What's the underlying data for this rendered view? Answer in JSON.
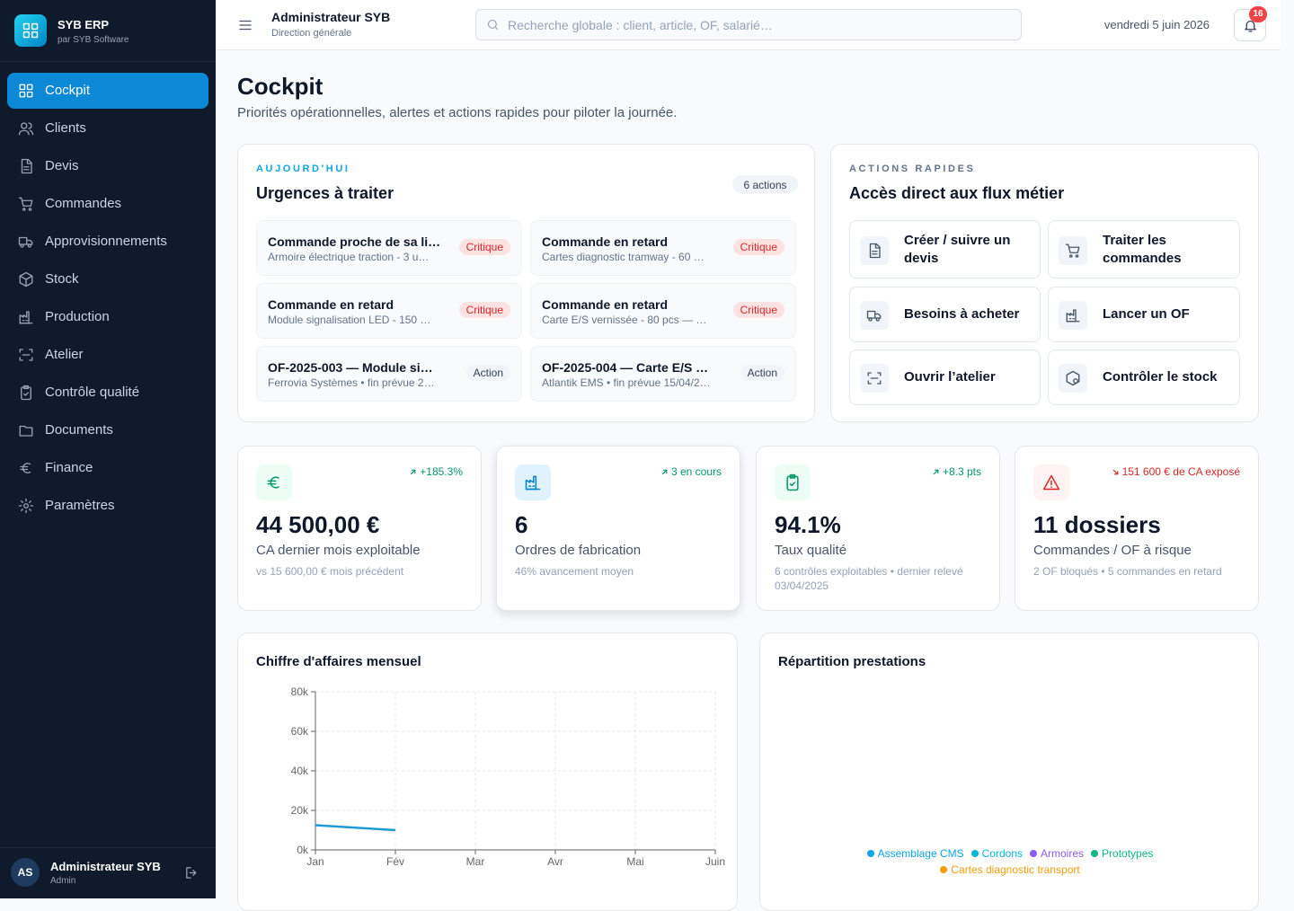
{
  "sidebar": {
    "brand": "SYB ERP",
    "brand_sub": "par SYB Software",
    "nav": [
      "Cockpit",
      "Clients",
      "Devis",
      "Commandes",
      "Approvisionnements",
      "Stock",
      "Production",
      "Atelier",
      "Contrôle qualité",
      "Documents",
      "Finance",
      "Paramètres"
    ],
    "user": {
      "initials": "AS",
      "name": "Administrateur SYB",
      "role": "Admin"
    }
  },
  "header": {
    "user": "Administrateur SYB",
    "role": "Direction générale",
    "search_placeholder": "Recherche globale : client, article, OF, salarié…",
    "date": "vendredi 5 juin 2026",
    "notifications": 16
  },
  "page": {
    "title": "Cockpit",
    "subtitle": "Priorités opérationnelles, alertes et actions rapides pour piloter la journée."
  },
  "urgences": {
    "eyebrow": "AUJOURD'HUI",
    "title": "Urgences à traiter",
    "count": "6 actions",
    "items": [
      {
        "title": "Commande proche de sa li…",
        "detail": "Armoire électrique traction - 3 u…",
        "badge": "Critique"
      },
      {
        "title": "Commande en retard",
        "detail": "Cartes diagnostic tramway - 60 …",
        "badge": "Critique"
      },
      {
        "title": "Commande en retard",
        "detail": "Module signalisation LED - 150 …",
        "badge": "Critique"
      },
      {
        "title": "Commande en retard",
        "detail": "Carte E/S vernissée - 80 pcs — …",
        "badge": "Critique"
      },
      {
        "title": "OF-2025-003 — Module si…",
        "detail": "Ferrovia Systèmes • fin prévue 2…",
        "badge": "Action"
      },
      {
        "title": "OF-2025-004 — Carte E/S …",
        "detail": "Atlantik EMS • fin prévue 15/04/2…",
        "badge": "Action"
      }
    ]
  },
  "quick_actions": {
    "eyebrow": "ACTIONS RAPIDES",
    "title": "Accès direct aux flux métier",
    "items": [
      "Créer / suivre un devis",
      "Traiter les commandes",
      "Besoins à acheter",
      "Lancer un OF",
      "Ouvrir l’atelier",
      "Contrôler le stock"
    ]
  },
  "kpis": [
    {
      "trend": "+185.3%",
      "value": "44 500,00 €",
      "label": "CA dernier mois exploitable",
      "note": "vs 15 600,00 € mois précédent"
    },
    {
      "trend": "3 en cours",
      "value": "6",
      "label": "Ordres de fabrication",
      "note": "46% avancement moyen"
    },
    {
      "trend": "+8.3 pts",
      "value": "94.1%",
      "label": "Taux qualité",
      "note": "6 contrôles exploitables • dernier relevé 03/04/2025"
    },
    {
      "trend": "151 600 € de CA exposé",
      "value": "11 dossiers",
      "label": "Commandes / OF à risque",
      "note": "2 OF bloqués • 5 commandes en retard"
    }
  ],
  "chart_data": [
    {
      "type": "line",
      "title": "Chiffre d'affaires mensuel",
      "categories": [
        "Jan",
        "Fév",
        "Mar",
        "Avr",
        "Mai",
        "Juin"
      ],
      "values": [
        12500,
        10000,
        null,
        null,
        null,
        null
      ],
      "color": "#1e9bd7",
      "ylim": [
        0,
        80000
      ],
      "yticks": [
        {
          "value": 0,
          "label": "0k"
        },
        {
          "value": 20000,
          "label": "20k"
        },
        {
          "value": 40000,
          "label": "40k"
        },
        {
          "value": 60000,
          "label": "60k"
        },
        {
          "value": 80000,
          "label": "80k"
        }
      ],
      "grid": true
    },
    {
      "type": "pie",
      "title": "Répartition prestations",
      "categories": [
        "Assemblage CMS",
        "Cordons",
        "Armoires",
        "Prototypes",
        "Cartes diagnostic transport"
      ],
      "colors": [
        "#0ea5e9",
        "#06b6d4",
        "#8b5cf6",
        "#10b981",
        "#f59e0b"
      ]
    }
  ]
}
